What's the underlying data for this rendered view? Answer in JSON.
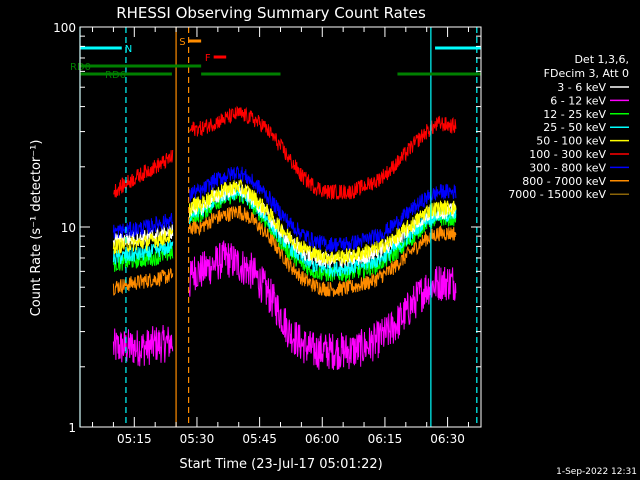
{
  "chart_data": {
    "type": "line",
    "title": "RHESSI Observing Summary Count Rates",
    "xlabel": "Start Time (23-Jul-17 05:01:22)",
    "ylabel": "Count Rate (s⁻¹ detector⁻¹)",
    "x_unit": "minutes after 05:00 UT",
    "xlim": [
      2,
      98
    ],
    "ylim": [
      1,
      100
    ],
    "yscale": "log",
    "x_ticks": [
      {
        "label": "05:15",
        "value": 15
      },
      {
        "label": "05:30",
        "value": 30
      },
      {
        "label": "05:45",
        "value": 45
      },
      {
        "label": "06:00",
        "value": 60
      },
      {
        "label": "06:15",
        "value": 75
      },
      {
        "label": "06:30",
        "value": 90
      }
    ],
    "y_ticks": [
      {
        "label": "1",
        "value": 1
      },
      {
        "label": "10",
        "value": 10
      },
      {
        "label": "100",
        "value": 100
      }
    ],
    "legend_placement": "right",
    "legend_header": [
      "Det 1,3,6,",
      "FDecim 3, Att 0"
    ],
    "series": [
      {
        "name": "3 - 6 keV",
        "color": "#ffffff"
      },
      {
        "name": "6 - 12 keV",
        "color": "#ff00ff"
      },
      {
        "name": "12 - 25 keV",
        "color": "#00ff00"
      },
      {
        "name": "25 - 50 keV",
        "color": "#00ffff"
      },
      {
        "name": "50 - 100 keV",
        "color": "#ffff00"
      },
      {
        "name": "100 - 300 keV",
        "color": "#ff0000"
      },
      {
        "name": "300 - 800 keV",
        "color": "#0000ff"
      },
      {
        "name": "800 - 7000 keV",
        "color": "#ff8c00"
      },
      {
        "name": "7000 - 15000 keV",
        "color": "#8b6508"
      }
    ],
    "profiles": {
      "t": [
        10,
        12,
        14,
        16,
        18,
        20,
        22,
        25,
        28,
        29,
        31,
        34,
        37,
        40,
        43,
        46,
        49,
        52,
        55,
        58,
        61,
        64,
        67,
        70,
        73,
        76,
        79,
        82,
        85,
        88,
        91,
        92
      ],
      "100 - 300 keV": [
        15,
        16,
        17,
        18,
        19,
        20,
        21,
        23,
        30,
        31,
        31,
        33,
        35,
        37,
        35,
        32,
        27,
        22,
        18,
        16,
        15,
        15,
        15,
        16,
        17,
        19,
        22,
        26,
        30,
        33,
        32,
        32
      ],
      "300 - 800 keV": [
        9.5,
        9.6,
        9.7,
        9.8,
        10,
        10.3,
        10.6,
        11,
        14,
        15,
        15,
        17,
        18,
        19,
        17,
        15,
        12.5,
        10.5,
        9.3,
        8.5,
        8.2,
        8.2,
        8.3,
        8.6,
        9,
        9.8,
        11,
        12.5,
        14,
        15,
        15,
        15
      ],
      "50 - 100 keV": [
        8,
        8.1,
        8.2,
        8.3,
        8.4,
        8.6,
        8.8,
        9.2,
        12,
        13,
        13,
        14.5,
        15.5,
        16,
        14.5,
        12.5,
        10.5,
        9,
        8,
        7.4,
        7.1,
        7.1,
        7.2,
        7.5,
        7.8,
        8.4,
        9.4,
        10.5,
        12,
        12.5,
        12.5,
        12.5
      ],
      "12 - 25 keV": [
        6.5,
        6.6,
        6.7,
        6.8,
        6.9,
        7,
        7.2,
        7.5,
        10.5,
        11.5,
        11.5,
        13,
        14,
        14.5,
        13,
        11,
        9,
        7.5,
        6.5,
        6,
        5.8,
        5.8,
        5.9,
        6.1,
        6.4,
        7,
        7.8,
        9,
        10.5,
        11,
        11,
        11
      ],
      "25 - 50 keV": [
        7,
        7.1,
        7.2,
        7.3,
        7.4,
        7.6,
        7.8,
        8,
        11,
        12,
        12,
        13.5,
        14.5,
        15,
        13.5,
        11.5,
        9.5,
        8,
        7,
        6.4,
        6.2,
        6.2,
        6.3,
        6.5,
        6.8,
        7.4,
        8.3,
        9.5,
        11,
        11.5,
        11.5,
        11.5
      ],
      "3 - 6 keV": [
        8.5,
        8.6,
        8.7,
        8.8,
        8.9,
        9.1,
        9.3,
        9.6,
        11.5,
        12.5,
        12.5,
        14,
        15,
        15.5,
        14,
        12,
        10,
        8.6,
        7.6,
        7,
        6.8,
        6.8,
        6.9,
        7.1,
        7.5,
        8.1,
        9,
        10.2,
        11.5,
        12,
        12,
        12
      ],
      "800 - 7000 keV": [
        5,
        5.1,
        5.2,
        5.3,
        5.4,
        5.5,
        5.6,
        5.8,
        9.5,
        10,
        10,
        11,
        11.5,
        12,
        11,
        9.5,
        8,
        6.5,
        5.6,
        5.1,
        4.9,
        4.9,
        5,
        5.2,
        5.5,
        6,
        6.8,
        7.8,
        8.8,
        9.3,
        9.3,
        9.3
      ],
      "6 - 12 keV": [
        2.5,
        2.5,
        2.5,
        2.5,
        2.5,
        2.6,
        2.6,
        2.7,
        5,
        6,
        6,
        6.5,
        7,
        6.5,
        6,
        5,
        4,
        3,
        2.6,
        2.4,
        2.4,
        2.4,
        2.4,
        2.5,
        2.7,
        3,
        3.5,
        4.2,
        5,
        5.3,
        5.3,
        5.3
      ]
    },
    "states": [
      {
        "label": "N",
        "color": "#00ffff",
        "segments": [
          [
            2,
            12
          ],
          [
            87,
            98
          ]
        ]
      },
      {
        "label": "S",
        "color": "#ff8c00",
        "segments": [
          [
            28,
            31
          ]
        ]
      },
      {
        "label": "F",
        "color": "#ff0000",
        "segments": [
          [
            34,
            37
          ]
        ]
      },
      {
        "label": "RD0",
        "color": "#008000",
        "segments": [
          [
            2,
            31
          ]
        ]
      },
      {
        "label": "RD6",
        "color": "#008000",
        "segments": [
          [
            2,
            24
          ],
          [
            31,
            50
          ],
          [
            78,
            98
          ]
        ]
      }
    ],
    "vertical_markers": [
      {
        "value": 2,
        "color": "#00ffff",
        "style": "solid"
      },
      {
        "value": 13,
        "color": "#00ffff",
        "style": "dashed"
      },
      {
        "value": 25,
        "color": "#ff8c00",
        "style": "solid"
      },
      {
        "value": 28,
        "color": "#ff8c00",
        "style": "dashed"
      },
      {
        "value": 86,
        "color": "#00ffff",
        "style": "solid"
      },
      {
        "value": 97,
        "color": "#00ffff",
        "style": "dashed"
      }
    ]
  },
  "footer": {
    "timestamp": "1-Sep-2022 12:31"
  }
}
